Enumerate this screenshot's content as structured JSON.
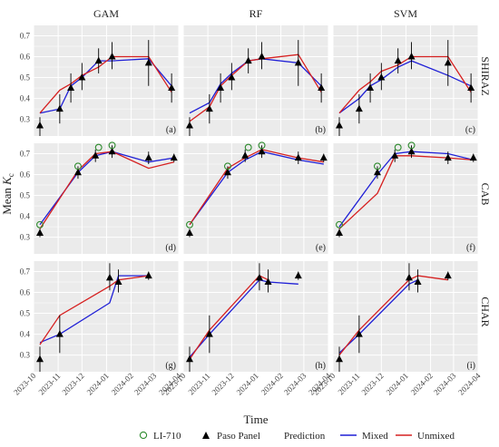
{
  "figure": {
    "ylabel_main": "Mean ",
    "ylabel_italic": "K",
    "ylabel_sub": "c",
    "xlabel": "Time",
    "column_titles": [
      "GAM",
      "RF",
      "SVM"
    ],
    "row_titles": [
      "SHIRAZ",
      "CAB",
      "CHAR"
    ],
    "panel_tags": [
      [
        "(a)",
        "(b)",
        "(c)"
      ],
      [
        "(d)",
        "(e)",
        "(f)"
      ],
      [
        "(g)",
        "(h)",
        "(i)"
      ]
    ],
    "x_tick_labels": [
      "2023-10",
      "2023-11",
      "2023-12",
      "2024-01",
      "2024-02",
      "2024-03",
      "2024-04"
    ],
    "y_tick_labels": [
      "0.3",
      "0.4",
      "0.5",
      "0.6",
      "0.7"
    ],
    "legend": {
      "li710": "LI-710",
      "paso": "Paso Panel",
      "prediction_title": "Prediction",
      "mixed": "Mixed",
      "unmixed": "Unmixed"
    }
  },
  "chart_data": {
    "type": "line",
    "facets": "3 rows (site) x 3 columns (model)",
    "x_axis": {
      "type": "date",
      "range": [
        "2023-10-01",
        "2024-04-01"
      ],
      "ticks": [
        "2023-10",
        "2023-11",
        "2023-12",
        "2024-01",
        "2024-02",
        "2024-03",
        "2024-04"
      ]
    },
    "y_axis": {
      "range": [
        0.22,
        0.75
      ],
      "ticks": [
        0.3,
        0.4,
        0.5,
        0.6,
        0.7
      ]
    },
    "grid": true,
    "colors": {
      "panel_background": "#ebebeb",
      "li710": "#2e8b2e",
      "paso": "#000000",
      "mixed": "#1f1fd6",
      "unmixed": "#d62020"
    },
    "observations": {
      "SHIRAZ": {
        "paso": [
          {
            "x": "2023-10-09",
            "y": 0.27,
            "lo": 0.22,
            "hi": 0.31
          },
          {
            "x": "2023-11-03",
            "y": 0.35,
            "lo": 0.28,
            "hi": 0.42
          },
          {
            "x": "2023-11-17",
            "y": 0.45,
            "lo": 0.38,
            "hi": 0.52
          },
          {
            "x": "2023-12-01",
            "y": 0.5,
            "lo": 0.44,
            "hi": 0.57
          },
          {
            "x": "2023-12-22",
            "y": 0.58,
            "lo": 0.52,
            "hi": 0.64
          },
          {
            "x": "2024-01-08",
            "y": 0.6,
            "lo": 0.54,
            "hi": 0.67
          },
          {
            "x": "2024-02-23",
            "y": 0.57,
            "lo": 0.46,
            "hi": 0.68
          },
          {
            "x": "2024-03-23",
            "y": 0.45,
            "lo": 0.38,
            "hi": 0.52
          }
        ],
        "li710": []
      },
      "CAB": {
        "paso": [
          {
            "x": "2023-10-09",
            "y": 0.32,
            "lo": 0.3,
            "hi": 0.34
          },
          {
            "x": "2023-11-26",
            "y": 0.61,
            "lo": 0.58,
            "hi": 0.64
          },
          {
            "x": "2023-12-18",
            "y": 0.69,
            "lo": 0.66,
            "hi": 0.72
          },
          {
            "x": "2024-01-08",
            "y": 0.71,
            "lo": 0.68,
            "hi": 0.74
          },
          {
            "x": "2024-02-23",
            "y": 0.68,
            "lo": 0.65,
            "hi": 0.71
          },
          {
            "x": "2024-03-26",
            "y": 0.68,
            "lo": 0.66,
            "hi": 0.7
          }
        ],
        "li710": [
          {
            "x": "2023-10-09",
            "y": 0.36
          },
          {
            "x": "2023-11-26",
            "y": 0.64
          },
          {
            "x": "2023-12-22",
            "y": 0.73
          },
          {
            "x": "2024-01-08",
            "y": 0.74
          }
        ]
      },
      "CHAR": {
        "paso": [
          {
            "x": "2023-10-09",
            "y": 0.28,
            "lo": 0.22,
            "hi": 0.34
          },
          {
            "x": "2023-11-03",
            "y": 0.4,
            "lo": 0.31,
            "hi": 0.49
          },
          {
            "x": "2024-01-05",
            "y": 0.67,
            "lo": 0.61,
            "hi": 0.74
          },
          {
            "x": "2024-01-16",
            "y": 0.65,
            "lo": 0.6,
            "hi": 0.71
          },
          {
            "x": "2024-02-23",
            "y": 0.68,
            "lo": 0.66,
            "hi": 0.7
          }
        ],
        "li710": []
      }
    },
    "predictions": {
      "GAM": {
        "SHIRAZ": {
          "mixed": [
            [
              "2023-10-09",
              0.33
            ],
            [
              "2023-11-03",
              0.35
            ],
            [
              "2023-11-17",
              0.46
            ],
            [
              "2023-12-01",
              0.5
            ],
            [
              "2023-12-22",
              0.58
            ],
            [
              "2024-01-08",
              0.58
            ],
            [
              "2024-02-23",
              0.59
            ],
            [
              "2024-03-23",
              0.46
            ]
          ],
          "unmixed": [
            [
              "2023-10-09",
              0.33
            ],
            [
              "2023-11-03",
              0.44
            ],
            [
              "2023-11-17",
              0.47
            ],
            [
              "2023-12-01",
              0.51
            ],
            [
              "2023-12-22",
              0.55
            ],
            [
              "2024-01-08",
              0.6
            ],
            [
              "2024-02-23",
              0.6
            ],
            [
              "2024-03-23",
              0.43
            ]
          ]
        },
        "CAB": {
          "mixed": [
            [
              "2023-10-09",
              0.36
            ],
            [
              "2023-11-26",
              0.61
            ],
            [
              "2023-12-18",
              0.69
            ],
            [
              "2024-01-08",
              0.71
            ],
            [
              "2024-02-23",
              0.66
            ],
            [
              "2024-03-26",
              0.68
            ]
          ],
          "unmixed": [
            [
              "2023-10-09",
              0.34
            ],
            [
              "2023-11-26",
              0.62
            ],
            [
              "2023-12-18",
              0.7
            ],
            [
              "2024-01-08",
              0.71
            ],
            [
              "2024-02-23",
              0.63
            ],
            [
              "2024-03-26",
              0.66
            ]
          ]
        },
        "CHAR": {
          "mixed": [
            [
              "2023-10-09",
              0.36
            ],
            [
              "2023-11-03",
              0.4
            ],
            [
              "2024-01-05",
              0.55
            ],
            [
              "2024-01-16",
              0.68
            ],
            [
              "2024-02-23",
              0.68
            ]
          ],
          "unmixed": [
            [
              "2023-10-09",
              0.35
            ],
            [
              "2023-11-03",
              0.49
            ],
            [
              "2024-01-05",
              0.63
            ],
            [
              "2024-01-16",
              0.66
            ],
            [
              "2024-02-23",
              0.68
            ]
          ]
        }
      },
      "RF": {
        "SHIRAZ": {
          "mixed": [
            [
              "2023-10-09",
              0.33
            ],
            [
              "2023-11-03",
              0.38
            ],
            [
              "2023-11-17",
              0.47
            ],
            [
              "2023-12-01",
              0.52
            ],
            [
              "2023-12-22",
              0.58
            ],
            [
              "2024-01-08",
              0.59
            ],
            [
              "2024-02-23",
              0.57
            ],
            [
              "2024-03-23",
              0.46
            ]
          ],
          "unmixed": [
            [
              "2023-10-09",
              0.29
            ],
            [
              "2023-11-03",
              0.36
            ],
            [
              "2023-11-17",
              0.46
            ],
            [
              "2023-12-01",
              0.51
            ],
            [
              "2023-12-22",
              0.58
            ],
            [
              "2024-01-08",
              0.59
            ],
            [
              "2024-02-23",
              0.61
            ],
            [
              "2024-03-23",
              0.43
            ]
          ]
        },
        "CAB": {
          "mixed": [
            [
              "2023-10-09",
              0.36
            ],
            [
              "2023-11-26",
              0.61
            ],
            [
              "2023-12-18",
              0.67
            ],
            [
              "2024-01-08",
              0.71
            ],
            [
              "2024-02-23",
              0.67
            ],
            [
              "2024-03-26",
              0.65
            ]
          ],
          "unmixed": [
            [
              "2023-10-09",
              0.36
            ],
            [
              "2023-11-26",
              0.63
            ],
            [
              "2023-12-18",
              0.68
            ],
            [
              "2024-01-08",
              0.72
            ],
            [
              "2024-02-23",
              0.68
            ],
            [
              "2024-03-26",
              0.66
            ]
          ]
        },
        "CHAR": {
          "mixed": [
            [
              "2023-10-09",
              0.29
            ],
            [
              "2023-11-03",
              0.4
            ],
            [
              "2024-01-05",
              0.66
            ],
            [
              "2024-01-16",
              0.65
            ],
            [
              "2024-02-23",
              0.64
            ]
          ],
          "unmixed": [
            [
              "2023-10-09",
              0.28
            ],
            [
              "2023-11-03",
              0.42
            ],
            [
              "2024-01-05",
              0.68
            ],
            [
              "2024-01-16",
              0.66
            ]
          ]
        }
      },
      "SVM": {
        "SHIRAZ": {
          "mixed": [
            [
              "2023-10-09",
              0.33
            ],
            [
              "2023-11-03",
              0.4
            ],
            [
              "2023-11-17",
              0.46
            ],
            [
              "2023-12-01",
              0.49
            ],
            [
              "2023-12-22",
              0.55
            ],
            [
              "2024-01-08",
              0.58
            ],
            [
              "2024-02-23",
              0.51
            ],
            [
              "2024-03-23",
              0.46
            ]
          ],
          "unmixed": [
            [
              "2023-10-09",
              0.33
            ],
            [
              "2023-11-03",
              0.44
            ],
            [
              "2023-11-17",
              0.48
            ],
            [
              "2023-12-01",
              0.53
            ],
            [
              "2023-12-22",
              0.56
            ],
            [
              "2024-01-08",
              0.6
            ],
            [
              "2024-02-23",
              0.6
            ],
            [
              "2024-03-23",
              0.43
            ]
          ]
        },
        "CAB": {
          "mixed": [
            [
              "2023-10-09",
              0.35
            ],
            [
              "2023-11-26",
              0.6
            ],
            [
              "2023-12-18",
              0.7
            ],
            [
              "2024-01-08",
              0.71
            ],
            [
              "2024-02-23",
              0.7
            ],
            [
              "2024-03-26",
              0.67
            ]
          ],
          "unmixed": [
            [
              "2023-10-09",
              0.34
            ],
            [
              "2023-11-26",
              0.51
            ],
            [
              "2023-12-18",
              0.69
            ],
            [
              "2024-01-08",
              0.69
            ],
            [
              "2024-02-23",
              0.68
            ],
            [
              "2024-03-26",
              0.67
            ]
          ]
        },
        "CHAR": {
          "mixed": [
            [
              "2023-10-09",
              0.31
            ],
            [
              "2023-11-03",
              0.4
            ],
            [
              "2024-01-05",
              0.64
            ],
            [
              "2024-01-16",
              0.66
            ]
          ],
          "unmixed": [
            [
              "2023-10-09",
              0.3
            ],
            [
              "2023-11-03",
              0.42
            ],
            [
              "2024-01-05",
              0.66
            ],
            [
              "2024-01-16",
              0.68
            ],
            [
              "2024-02-23",
              0.66
            ]
          ]
        }
      }
    }
  }
}
